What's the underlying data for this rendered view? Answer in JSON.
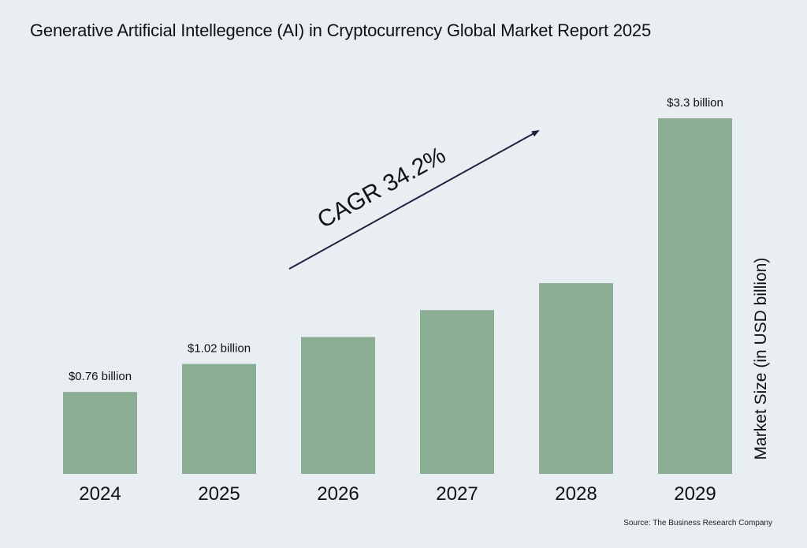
{
  "chart_data": {
    "type": "bar",
    "title": "Generative Artificial Intellegence (AI) in Cryptocurrency Global Market Report 2025",
    "categories": [
      "2024",
      "2025",
      "2026",
      "2027",
      "2028",
      "2029"
    ],
    "values": [
      0.76,
      1.02,
      1.27,
      1.52,
      1.77,
      3.3
    ],
    "data_labels": [
      "$0.76 billion",
      "$1.02 billion",
      "",
      "",
      "",
      "$3.3 billion"
    ],
    "xlabel": "",
    "ylabel": "Market Size (in USD billion)",
    "annotation": "CAGR 34.2%",
    "source": "Source: The Business Research Company",
    "grid": false,
    "legend": "none",
    "colors": {
      "bar": "#8aad93",
      "background": "#e9eef3",
      "arrow": "#1c2340",
      "text": "#111111"
    }
  }
}
